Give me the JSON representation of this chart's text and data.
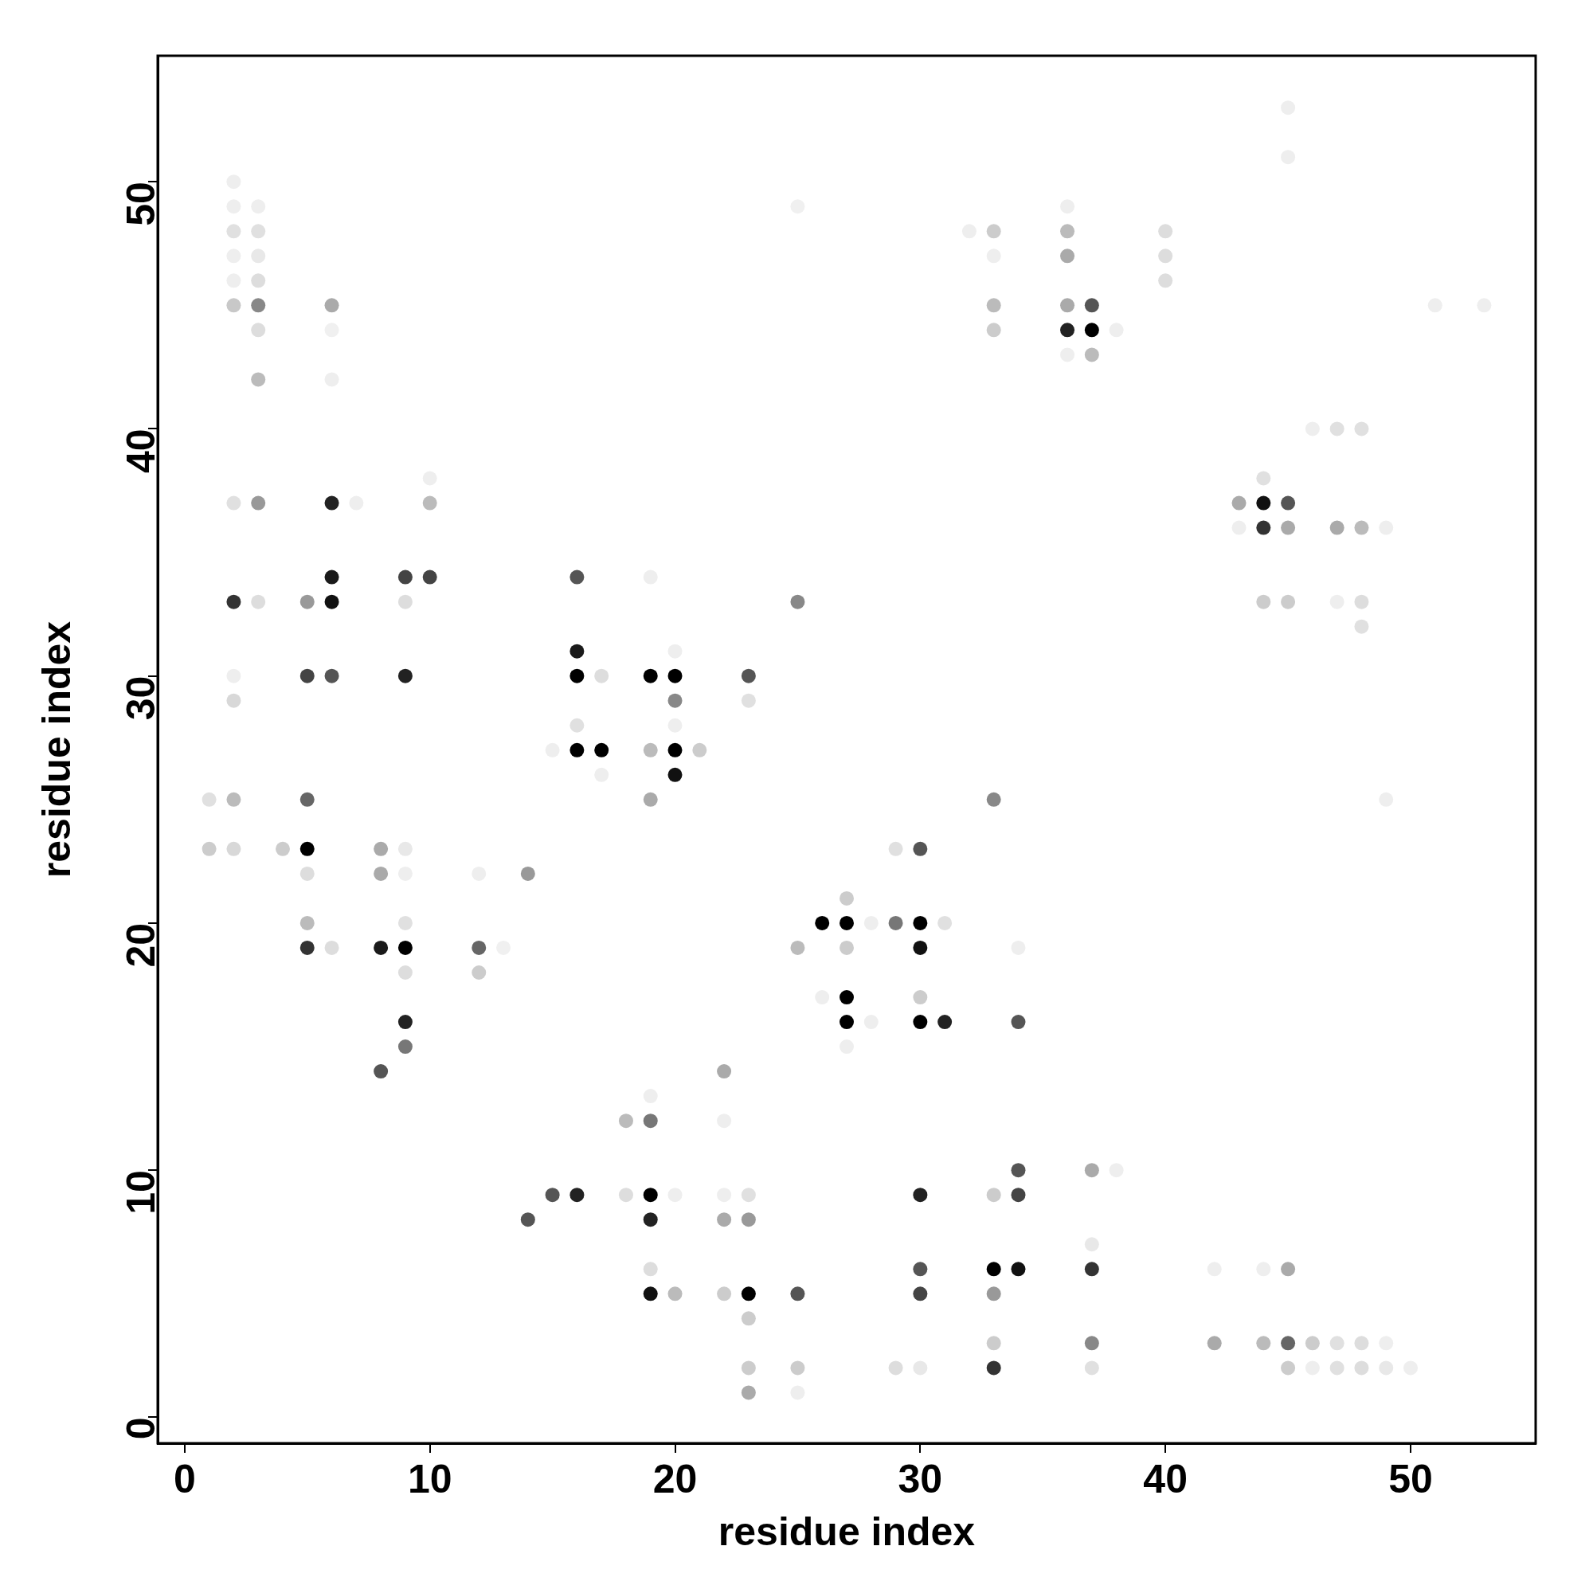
{
  "chart_data": {
    "type": "scatter",
    "xlabel": "residue index",
    "ylabel": "residue index",
    "xlim": [
      -1.1,
      55.1
    ],
    "ylim": [
      -1.05,
      55.1
    ],
    "xticks": [
      0,
      10,
      20,
      30,
      40,
      50
    ],
    "yticks": [
      0,
      10,
      20,
      30,
      40,
      50
    ],
    "grid": false,
    "legend": false,
    "marker": "circle",
    "series": [
      {
        "x": [
          1,
          1,
          2,
          2,
          2,
          2,
          2,
          2,
          2,
          2,
          2,
          2,
          2,
          2,
          3,
          3,
          3,
          3,
          3,
          3,
          3,
          3,
          3,
          4,
          5,
          5,
          5,
          5,
          5,
          5,
          5,
          6,
          6,
          6,
          6,
          6,
          6,
          6,
          6,
          7,
          8,
          8,
          8,
          8,
          9,
          9,
          9,
          9,
          9,
          9,
          9,
          9,
          9,
          9,
          10,
          10,
          10,
          12,
          12,
          12,
          13,
          14,
          14,
          15,
          15,
          16,
          16,
          16,
          16,
          16,
          16,
          17,
          17,
          17,
          18,
          18,
          19,
          19,
          19,
          19,
          19,
          19,
          19,
          19,
          19,
          19,
          20,
          20,
          20,
          20,
          20,
          20,
          20,
          20,
          21,
          22,
          22,
          22,
          22,
          22,
          23,
          23,
          23,
          23,
          23,
          23,
          23,
          23,
          25,
          25,
          25,
          25,
          25,
          25,
          26,
          26,
          27,
          27,
          27,
          27,
          27,
          27,
          28,
          28,
          29,
          29,
          29,
          30,
          30,
          30,
          30,
          30,
          30,
          30,
          30,
          30,
          31,
          31,
          32,
          33,
          33,
          33,
          33,
          33,
          33,
          33,
          33,
          33,
          33,
          34,
          34,
          34,
          34,
          34,
          36,
          36,
          36,
          36,
          36,
          36,
          37,
          37,
          37,
          37,
          37,
          37,
          37,
          37,
          38,
          38,
          40,
          40,
          40,
          42,
          42,
          43,
          43,
          44,
          44,
          44,
          44,
          44,
          44,
          45,
          45,
          45,
          45,
          45,
          45,
          45,
          45,
          46,
          46,
          46,
          47,
          47,
          47,
          47,
          47,
          48,
          48,
          48,
          48,
          48,
          48,
          49,
          49,
          49,
          49,
          50,
          51,
          53
        ],
        "values": [
          25,
          23,
          50,
          49,
          48,
          47,
          46,
          45,
          37,
          33,
          30,
          29,
          25,
          23,
          49,
          48,
          47,
          46,
          45,
          44,
          42,
          37,
          33,
          23,
          33,
          30,
          25,
          23,
          22,
          20,
          19,
          45,
          44,
          42,
          37,
          34,
          33,
          30,
          19,
          37,
          23,
          22,
          19,
          14,
          34,
          33,
          30,
          23,
          22,
          20,
          19,
          18,
          16,
          15,
          38,
          37,
          34,
          22,
          19,
          18,
          19,
          22,
          8,
          27,
          9,
          34,
          31,
          30,
          28,
          27,
          9,
          30,
          27,
          26,
          12,
          9,
          34,
          30,
          27,
          25,
          13,
          12,
          9,
          8,
          6,
          5,
          31,
          30,
          29,
          28,
          27,
          26,
          9,
          5,
          27,
          14,
          12,
          9,
          8,
          5,
          30,
          29,
          9,
          8,
          5,
          4,
          2,
          1,
          49,
          33,
          19,
          5,
          2,
          1,
          20,
          17,
          21,
          20,
          19,
          17,
          16,
          15,
          20,
          16,
          23,
          20,
          2,
          23,
          20,
          19,
          17,
          16,
          9,
          6,
          5,
          2,
          20,
          16,
          48,
          48,
          47,
          45,
          44,
          25,
          9,
          6,
          5,
          3,
          2,
          19,
          16,
          10,
          9,
          6,
          49,
          48,
          47,
          45,
          44,
          43,
          45,
          44,
          43,
          10,
          7,
          6,
          3,
          2,
          44,
          10,
          48,
          47,
          46,
          6,
          3,
          37,
          36,
          38,
          37,
          36,
          33,
          6,
          3,
          53,
          51,
          37,
          36,
          33,
          6,
          3,
          2,
          40,
          3,
          2,
          40,
          36,
          33,
          3,
          2,
          40,
          36,
          33,
          32,
          3,
          2,
          36,
          25,
          3,
          2,
          2,
          45,
          45
        ],
        "colors": [
          "#e0e0e0",
          "#cccccc",
          "#eeeeee",
          "#eeeeee",
          "#e0e0e0",
          "#eeeeee",
          "#eeeeee",
          "#c8c8c8",
          "#e0e0e0",
          "#333333",
          "#eeeeee",
          "#d8d8d8",
          "#bbbbbb",
          "#d8d8d8",
          "#eeeeee",
          "#e0e0e0",
          "#e8e8e8",
          "#dddddd",
          "#888888",
          "#dddddd",
          "#bbbbbb",
          "#999999",
          "#dddddd",
          "#cccccc",
          "#999999",
          "#444444",
          "#666666",
          "#000000",
          "#dddddd",
          "#bbbbbb",
          "#333333",
          "#aaaaaa",
          "#f0f0f0",
          "#eeeeee",
          "#222222",
          "#1a1a1a",
          "#111111",
          "#555555",
          "#dddddd",
          "#eeeeee",
          "#aaaaaa",
          "#aaaaaa",
          "#1a1a1a",
          "#555555",
          "#444444",
          "#dddddd",
          "#222222",
          "#e8e8e8",
          "#eeeeee",
          "#e0e0e0",
          "#000000",
          "#dddddd",
          "#222222",
          "#777777",
          "#eeeeee",
          "#bbbbbb",
          "#444444",
          "#eeeeee",
          "#666666",
          "#cccccc",
          "#f0f0f0",
          "#999999",
          "#555555",
          "#eeeeee",
          "#555555",
          "#555555",
          "#1a1a1a",
          "#000000",
          "#e0e0e0",
          "#000000",
          "#222222",
          "#dddddd",
          "#000000",
          "#eeeeee",
          "#bbbbbb",
          "#dddddd",
          "#eeeeee",
          "#000000",
          "#bbbbbb",
          "#aaaaaa",
          "#eeeeee",
          "#777777",
          "#000000",
          "#222222",
          "#dddddd",
          "#111111",
          "#eeeeee",
          "#000000",
          "#888888",
          "#eeeeee",
          "#000000",
          "#111111",
          "#eeeeee",
          "#bbbbbb",
          "#cccccc",
          "#aaaaaa",
          "#eeeeee",
          "#eeeeee",
          "#aaaaaa",
          "#cccccc",
          "#555555",
          "#e0e0e0",
          "#e0e0e0",
          "#999999",
          "#000000",
          "#cccccc",
          "#cccccc",
          "#aaaaaa",
          "#f0f0f0",
          "#888888",
          "#bbbbbb",
          "#555555",
          "#cccccc",
          "#eeeeee",
          "#000000",
          "#eeeeee",
          "#cccccc",
          "#000000",
          "#cccccc",
          "#000000",
          "#000000",
          "#eeeeee",
          "#eeeeee",
          "#eeeeee",
          "#e0e0e0",
          "#777777",
          "#dddddd",
          "#555555",
          "#000000",
          "#111111",
          "#cccccc",
          "#000000",
          "#222222",
          "#555555",
          "#444444",
          "#e8e8e8",
          "#e0e0e0",
          "#222222",
          "#eeeeee",
          "#cccccc",
          "#eeeeee",
          "#bbbbbb",
          "#cccccc",
          "#888888",
          "#cccccc",
          "#000000",
          "#999999",
          "#cccccc",
          "#333333",
          "#eeeeee",
          "#555555",
          "#555555",
          "#444444",
          "#111111",
          "#eeeeee",
          "#bbbbbb",
          "#aaaaaa",
          "#aaaaaa",
          "#222222",
          "#eeeeee",
          "#555555",
          "#000000",
          "#bbbbbb",
          "#aaaaaa",
          "#e8e8e8",
          "#333333",
          "#888888",
          "#e0e0e0",
          "#eeeeee",
          "#eeeeee",
          "#dddddd",
          "#dddddd",
          "#dddddd",
          "#eeeeee",
          "#aaaaaa",
          "#aaaaaa",
          "#eeeeee",
          "#e0e0e0",
          "#111111",
          "#333333",
          "#cccccc",
          "#eeeeee",
          "#bbbbbb",
          "#eeeeee",
          "#eeeeee",
          "#555555",
          "#aaaaaa",
          "#cccccc",
          "#aaaaaa",
          "#666666",
          "#cccccc",
          "#eeeeee",
          "#cccccc",
          "#eeeeee",
          "#e0e0e0",
          "#aaaaaa",
          "#eeeeee",
          "#e0e0e0",
          "#e0e0e0",
          "#e0e0e0",
          "#bbbbbb",
          "#dddddd",
          "#e0e0e0",
          "#dddddd",
          "#dddddd",
          "#eeeeee",
          "#eeeeee",
          "#eeeeee",
          "#e8e8e8",
          "#eeeeee",
          "#eeeeee",
          "#eeeeee"
        ]
      }
    ]
  }
}
